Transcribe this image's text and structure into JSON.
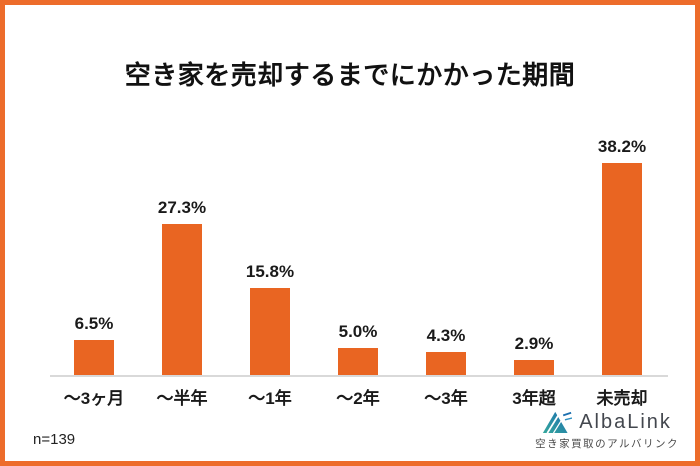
{
  "title": "空き家を売却するまでにかかった期間",
  "chart_data": {
    "type": "bar",
    "title": "空き家を売却するまでにかかった期間",
    "categories": [
      "〜3ヶ月",
      "〜半年",
      "〜1年",
      "〜2年",
      "〜3年",
      "3年超",
      "未売却"
    ],
    "values": [
      6.5,
      27.3,
      15.8,
      5.0,
      4.3,
      2.9,
      38.2
    ],
    "value_labels": [
      "6.5%",
      "27.3%",
      "15.8%",
      "5.0%",
      "4.3%",
      "2.9%",
      "38.2%"
    ],
    "unit": "%",
    "ylim": [
      0,
      40
    ],
    "grid": false,
    "legend": false,
    "xlabel": "",
    "ylabel": "",
    "bar_color": "#E96522"
  },
  "footer": {
    "sample_size": "n=139",
    "brand_name": "AlbaLink",
    "brand_tagline": "空き家買取のアルバリンク"
  },
  "colors": {
    "bar_orange": "#E96522",
    "frame_orange": "#ED6C2B",
    "axis_gray": "#D9D9D9",
    "title_text": "#111111",
    "brand_text": "#43474E"
  }
}
